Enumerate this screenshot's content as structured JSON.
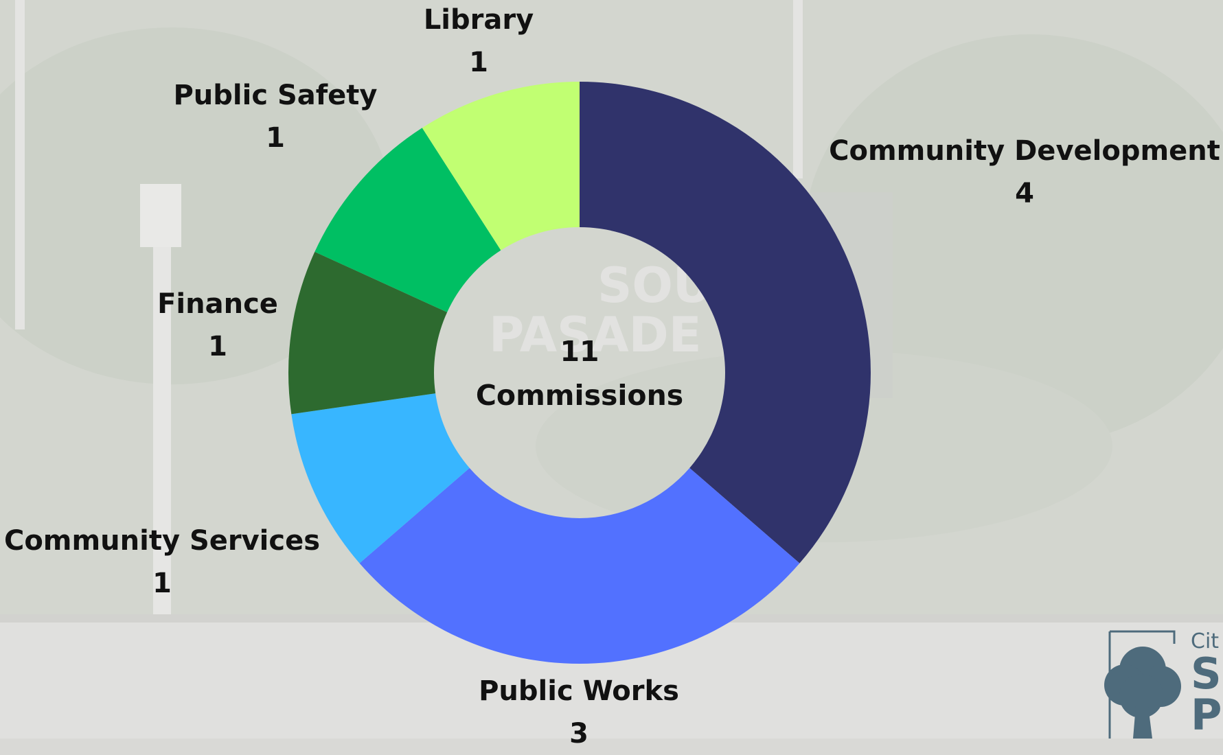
{
  "chart_data": {
    "type": "pie",
    "donut": true,
    "center_value": "11",
    "center_label": "Commissions",
    "categories": [
      "Community Development",
      "Public Works",
      "Community Services",
      "Finance",
      "Public Safety",
      "Library"
    ],
    "values": [
      4,
      3,
      1,
      1,
      1,
      1
    ],
    "colors": [
      "#30336b",
      "#5271ff",
      "#38b6ff",
      "#2d6a2f",
      "#00bf63",
      "#c1ff72"
    ],
    "total": 11
  },
  "logo": {
    "line1": "Cit",
    "line2": "S",
    "line3": "P"
  }
}
